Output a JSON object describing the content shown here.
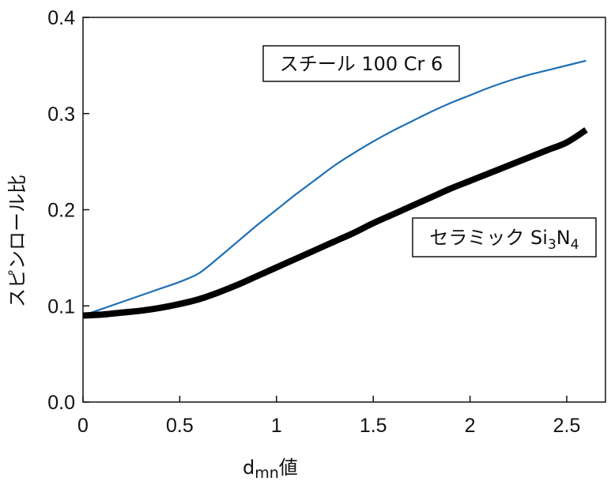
{
  "chart_data": {
    "type": "line",
    "xlabel": "dmn値",
    "xlabel_parts": {
      "main": "d",
      "sub": "mn",
      "suffix": "値"
    },
    "ylabel": "スピンロール比",
    "xlim": [
      0,
      2.7
    ],
    "ylim": [
      0,
      0.4
    ],
    "x_ticks": [
      "0",
      "0.5",
      "1",
      "1.5",
      "2",
      "2.5"
    ],
    "y_ticks": [
      "0.0",
      "0.1",
      "0.2",
      "0.3",
      "0.4"
    ],
    "grid": false,
    "series": [
      {
        "name": "スチール 100 Cr 6",
        "label_parts": {
          "text": "スチール 100 Cr 6"
        },
        "color": "#1f6fb5",
        "style": "thin",
        "x": [
          0,
          0.1,
          0.2,
          0.3,
          0.4,
          0.5,
          0.6,
          0.7,
          0.8,
          0.9,
          1.0,
          1.1,
          1.2,
          1.3,
          1.4,
          1.5,
          1.6,
          1.7,
          1.8,
          1.9,
          2.0,
          2.1,
          2.2,
          2.3,
          2.4,
          2.5,
          2.6
        ],
        "y": [
          0.09,
          0.097,
          0.104,
          0.111,
          0.118,
          0.125,
          0.134,
          0.15,
          0.167,
          0.184,
          0.2,
          0.216,
          0.231,
          0.246,
          0.259,
          0.271,
          0.282,
          0.292,
          0.302,
          0.311,
          0.319,
          0.327,
          0.334,
          0.34,
          0.345,
          0.35,
          0.355
        ]
      },
      {
        "name": "セラミック Si3N4",
        "label_parts": {
          "prefix": "セラミック Si",
          "sub1": "3",
          "mid": "N",
          "sub2": "4"
        },
        "color": "#000000",
        "style": "thick",
        "x": [
          0,
          0.1,
          0.2,
          0.3,
          0.4,
          0.5,
          0.6,
          0.7,
          0.8,
          0.9,
          1.0,
          1.1,
          1.2,
          1.3,
          1.4,
          1.5,
          1.6,
          1.7,
          1.8,
          1.9,
          2.0,
          2.1,
          2.2,
          2.3,
          2.4,
          2.5,
          2.6
        ],
        "y": [
          0.09,
          0.091,
          0.093,
          0.095,
          0.098,
          0.102,
          0.107,
          0.114,
          0.122,
          0.131,
          0.14,
          0.149,
          0.158,
          0.167,
          0.176,
          0.186,
          0.195,
          0.204,
          0.213,
          0.222,
          0.23,
          0.238,
          0.246,
          0.254,
          0.262,
          0.27,
          0.283
        ]
      }
    ]
  }
}
